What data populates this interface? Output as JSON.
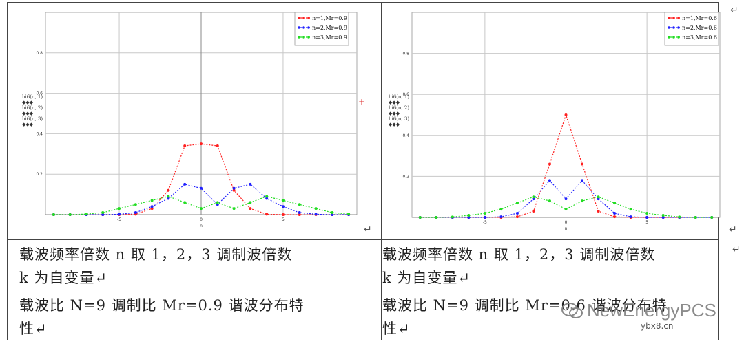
{
  "chart_data": [
    {
      "type": "line",
      "title": "",
      "xlabel": "n",
      "ylabel_entries": [
        "hi6(n, 1)",
        "hi6(n, 2)",
        "hi6(n, 3)"
      ],
      "xlim": [
        -9.5,
        9.5
      ],
      "ylim": [
        0,
        1.0
      ],
      "x_ticks": [
        -5,
        0,
        5
      ],
      "y_ticks": [
        0.2,
        0.4,
        0.6,
        0.8
      ],
      "grid": true,
      "legend_position": "top-right",
      "x": [
        -9,
        -8,
        -7,
        -6,
        -5,
        -4,
        -3,
        -2,
        -1,
        0,
        1,
        2,
        3,
        4,
        5,
        6,
        7,
        8,
        9
      ],
      "series": [
        {
          "name": "n=1,Mr=0.9",
          "color": "#ff2020",
          "values": [
            0,
            0,
            0,
            0,
            0,
            0.002,
            0.03,
            0.12,
            0.34,
            0.35,
            0.34,
            0.12,
            0.03,
            0.002,
            0,
            0,
            0,
            0,
            0
          ]
        },
        {
          "name": "n=2,Mr=0.9",
          "color": "#2020ff",
          "values": [
            0,
            0,
            0,
            0,
            0.002,
            0.01,
            0.04,
            0.08,
            0.15,
            0.13,
            0.05,
            0.13,
            0.15,
            0.08,
            0.04,
            0.01,
            0.002,
            0,
            0
          ]
        },
        {
          "name": "n=3,Mr=0.9",
          "color": "#22dd22",
          "values": [
            0,
            0,
            0.003,
            0.01,
            0.03,
            0.05,
            0.07,
            0.09,
            0.06,
            0.03,
            0.06,
            0.03,
            0.06,
            0.09,
            0.07,
            0.05,
            0.03,
            0.01,
            0.003
          ]
        }
      ]
    },
    {
      "type": "line",
      "title": "",
      "xlabel": "n",
      "ylabel_entries": [
        "hi6(n, 1)",
        "hi6(n, 2)",
        "hi6(n, 3)"
      ],
      "xlim": [
        -9.5,
        9.5
      ],
      "ylim": [
        0,
        1.0
      ],
      "x_ticks": [
        -5,
        0,
        5
      ],
      "y_ticks": [
        0.2,
        0.4,
        0.6,
        0.8
      ],
      "grid": true,
      "legend_position": "top-right",
      "x": [
        -9,
        -8,
        -7,
        -6,
        -5,
        -4,
        -3,
        -2,
        -1,
        0,
        1,
        2,
        3,
        4,
        5,
        6,
        7,
        8,
        9
      ],
      "series": [
        {
          "name": "n=1,Mr=0.6",
          "color": "#ff2020",
          "values": [
            0,
            0,
            0,
            0,
            0,
            0,
            0.003,
            0.03,
            0.26,
            0.5,
            0.26,
            0.03,
            0.003,
            0,
            0,
            0,
            0,
            0,
            0
          ]
        },
        {
          "name": "n=2,Mr=0.6",
          "color": "#2020ff",
          "values": [
            0,
            0,
            0,
            0,
            0,
            0.003,
            0.02,
            0.09,
            0.18,
            0.09,
            0.18,
            0.09,
            0.02,
            0.003,
            0,
            0,
            0,
            0,
            0
          ]
        },
        {
          "name": "n=3,Mr=0.6",
          "color": "#22dd22",
          "values": [
            0,
            0,
            0.002,
            0.01,
            0.02,
            0.04,
            0.07,
            0.1,
            0.08,
            0.04,
            0.08,
            0.1,
            0.07,
            0.04,
            0.02,
            0.01,
            0.002,
            0,
            0
          ]
        }
      ]
    }
  ],
  "captions": {
    "left_row1": "载波频率倍数 n 取 1，2，3 调制波倍数\nk 为自变量↵",
    "right_row1": "载波频率倍数 n 取 1，2，3 调制波倍数\nk 为自变量↵",
    "left_row2": "载波比 N=9 调制比 Mr=0.9 谐波分布特\n性↵",
    "right_row2": "载波比 N=9 调制比 Mr=0.6 谐波分布特\n性↵"
  },
  "marks": {
    "return": "↵",
    "plus": "+"
  },
  "watermark": {
    "brand": "NewEnergyPCS",
    "domain": "ybx8.cn"
  },
  "ui": {
    "ylabel_marker": "◆◆◆"
  }
}
